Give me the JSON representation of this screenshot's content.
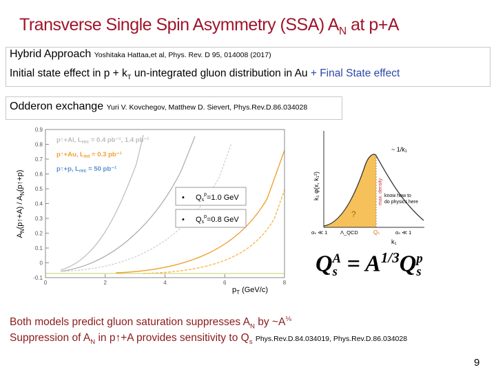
{
  "title": {
    "main": "Transverse Single Spin Asymmetry (SSA) A",
    "sub": "N",
    "end": " at p+A"
  },
  "hybrid": {
    "heading": "Hybrid Approach",
    "reference": "Yoshitaka Hattaa,et al, Phys. Rev. D 95, 014008 (2017)",
    "line_start": "Initial state effect in p  +  k",
    "line_sub": "T",
    "line_mid": " un-integrated gluon distribution in Au ",
    "line_end": "+ Final State effect"
  },
  "odderon": {
    "heading": "Odderon exchange",
    "reference": "Yuri V. Kovchegov, Matthew D. Sievert, Phys.Rev.D.86.034028"
  },
  "plot": {
    "ylabel": "A",
    "ylabel_sub": "N",
    "ylabel_mid": "(p↑+A) / A",
    "ylabel_sub2": "N",
    "ylabel_end": "(p↑+p)",
    "xlabel": "p",
    "xlabel_sub": "T",
    "xlabel_end": " (GeV/c)",
    "xlim": [
      0,
      8
    ],
    "xticks": [
      0,
      2,
      4,
      6,
      8
    ],
    "ylim": [
      -0.1,
      0.9
    ],
    "yticks": [
      0.9,
      0.8,
      0.7,
      0.6,
      0.5,
      0.4,
      0.3,
      0.2,
      0.1,
      0,
      -0.1
    ],
    "legend": [
      {
        "a": "p↑+Al, L",
        "sub": "rec",
        "b": " = 0.4 pb⁻¹, 1.4 pb⁻¹"
      },
      {
        "a": "p↑+Au, L",
        "sub": "int",
        "b": " = 0.3 pb⁻¹"
      },
      {
        "a": "p↑+p, L",
        "sub": "rec",
        "b": " = 50 pb⁻¹"
      }
    ],
    "boxes": [
      {
        "bullet": "•",
        "q": "Q",
        "sub": "s",
        "sup": "p",
        "rest": "=1.0 GeV"
      },
      {
        "bullet": "•",
        "q": "Q",
        "sub": "s",
        "sup": "p",
        "rest": "=0.8 GeV"
      }
    ]
  },
  "diagram": {
    "ylabel": "k₁ φ(x, k₁²)",
    "scaling": "~ 1/k₁",
    "density": "max. density",
    "know": [
      "know how to",
      "do physics here"
    ],
    "question": "?",
    "alpha_left": "αₛ ≪ 1",
    "lambda": "Λ_QCD",
    "qs": "Qₛ",
    "alpha_right": "αₛ ≪ 1",
    "xlabel": "k₁"
  },
  "formula": {
    "q1": "Q",
    "q1_sup": "A",
    "q1_sub": "s",
    "eq": " = A",
    "exp": "1/3",
    "q2": "Q",
    "q2_sup": "p",
    "q2_sub": "s"
  },
  "bottom": {
    "l1a": "Both models predict gluon saturation suppresses A",
    "l1sub": "N",
    "l1b": " by ~A",
    "l1sup": "⅙",
    "l2a": "Suppression of A",
    "l2sub": "N",
    "l2b": " in p↑+A provides sensitivity to Q",
    "l2sub2": "s",
    "reference": "Phys.Rev.D.84.034019, Phys.Rev.D.86.034028"
  },
  "page_number": "9"
}
